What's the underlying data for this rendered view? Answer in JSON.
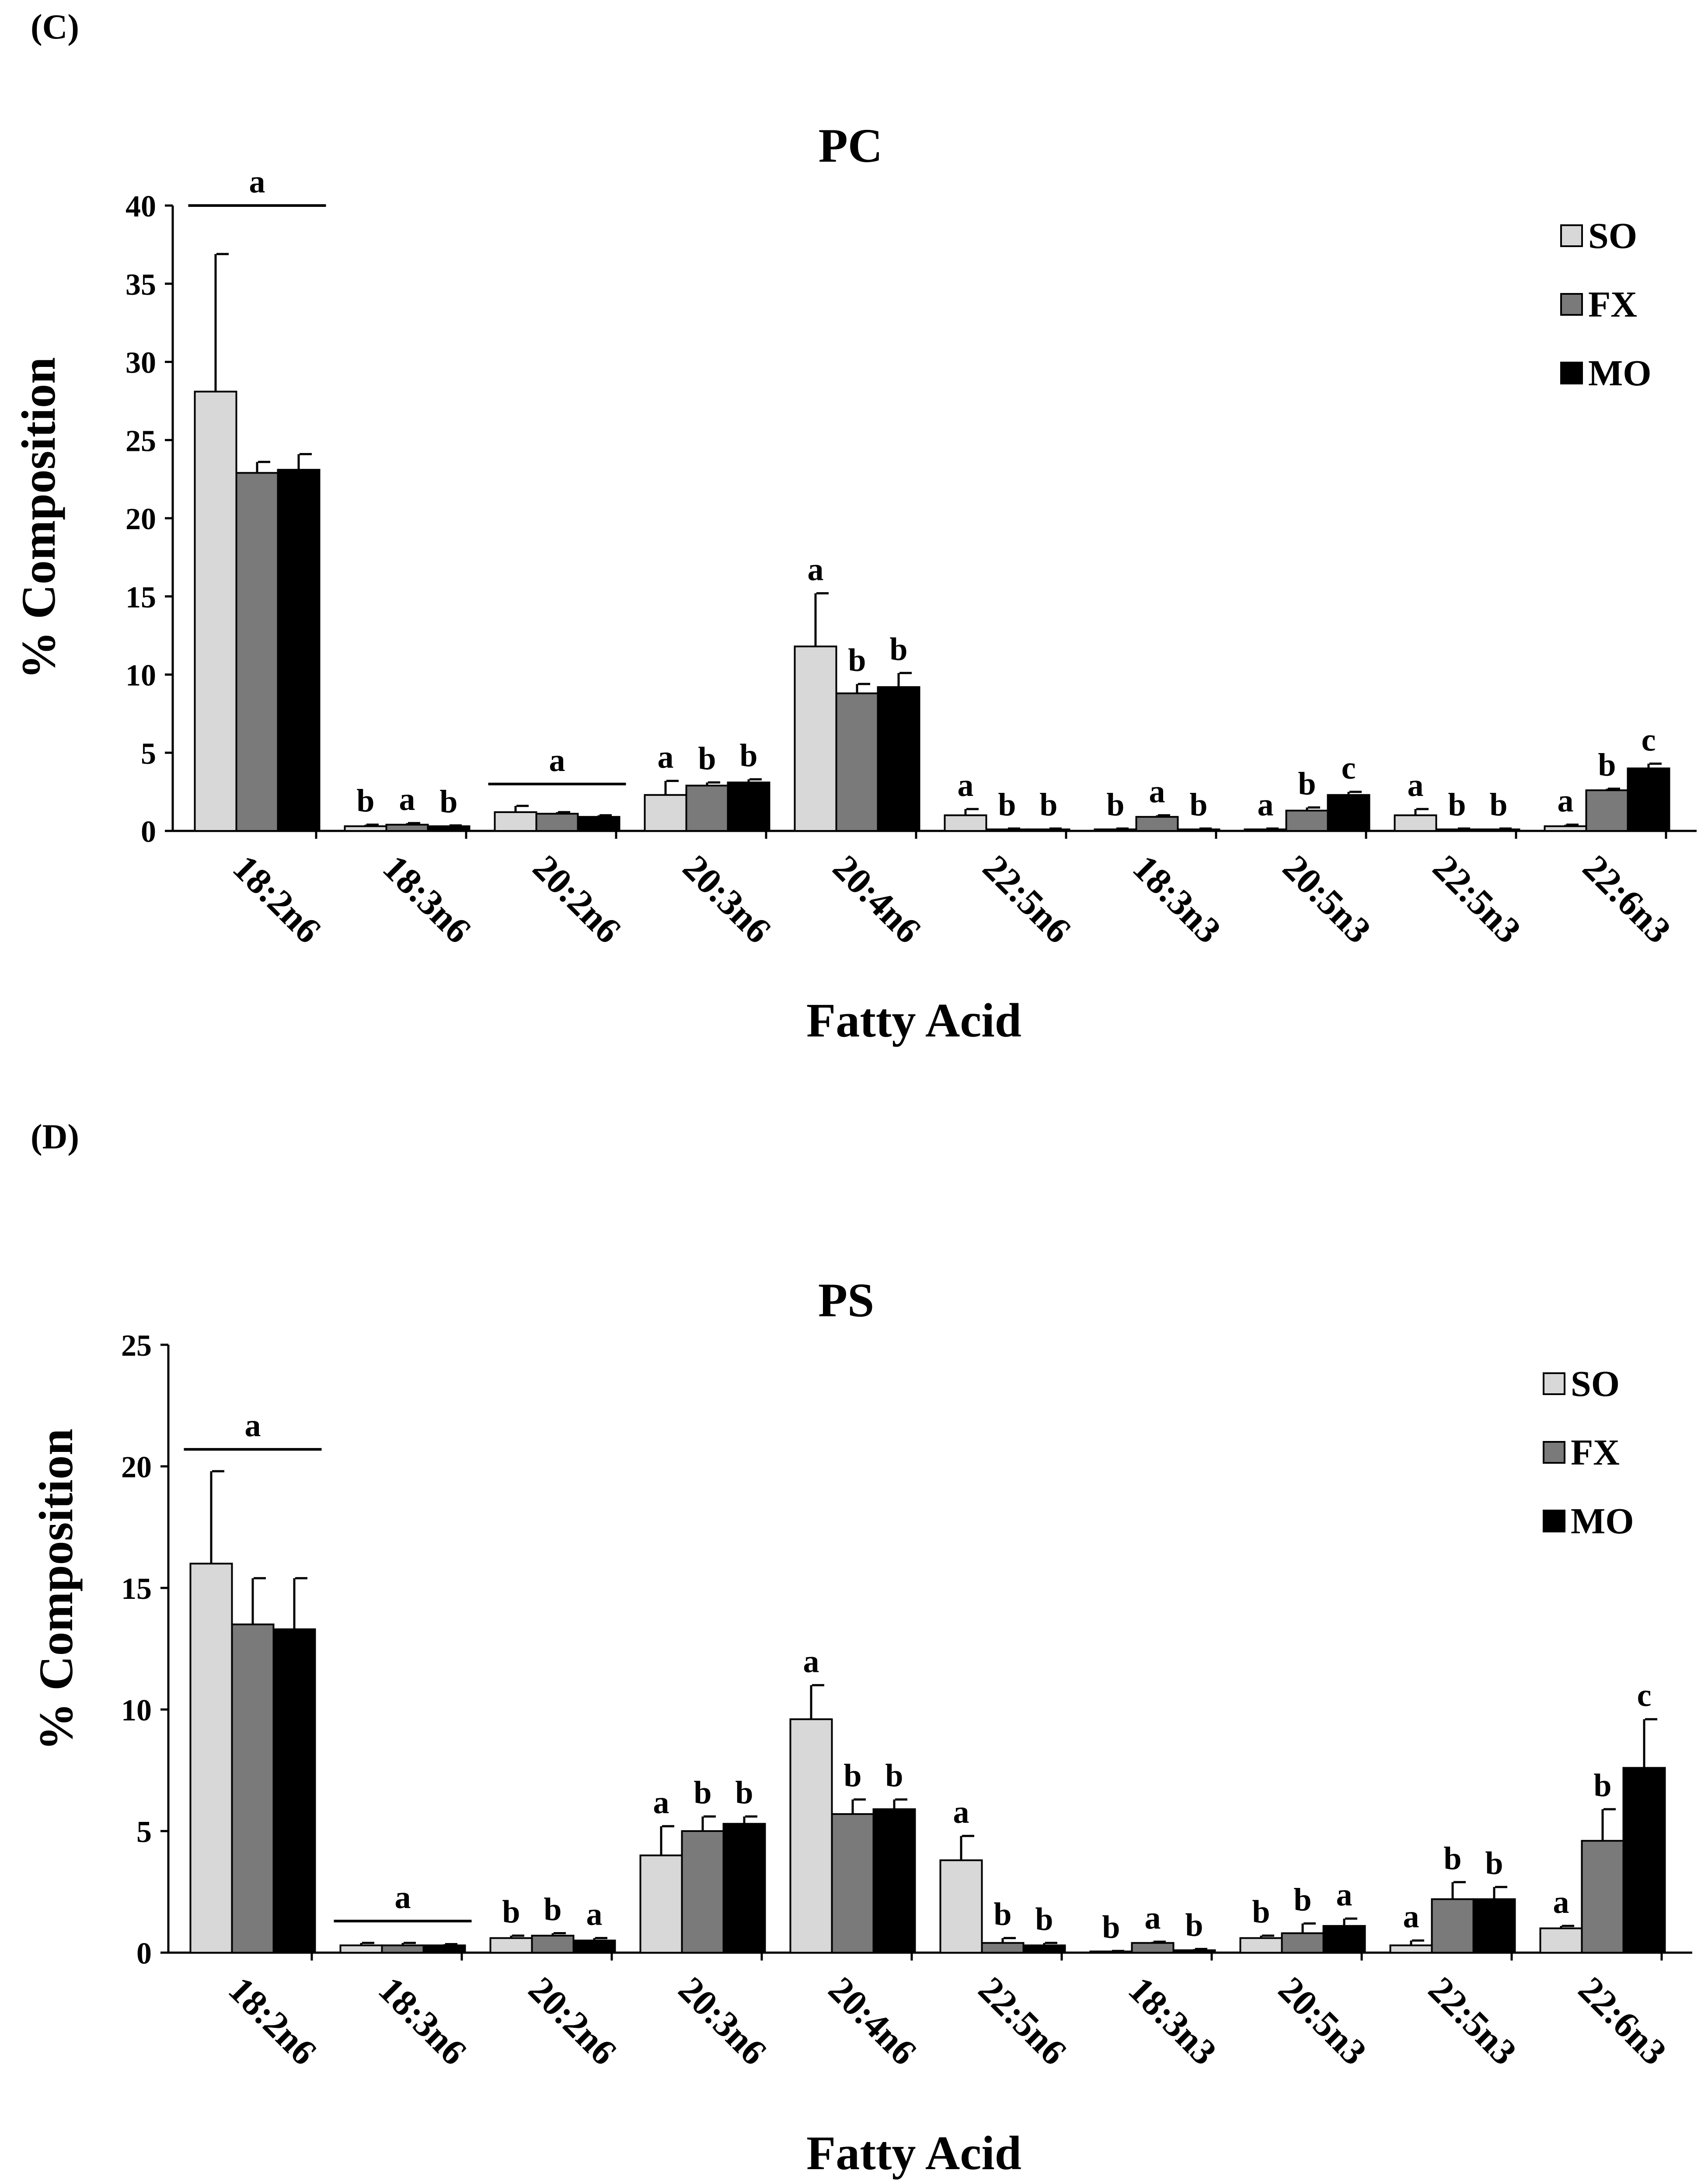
{
  "colors": {
    "SO": "#d8d8d8",
    "FX": "#7a7a7a",
    "MO": "#000000",
    "axis": "#000000"
  },
  "chart_data": [
    {
      "type": "bar",
      "panel_label": "(C)",
      "title": "PC",
      "xlabel": "Fatty Acid",
      "ylabel": "% Composition",
      "ylim": [
        0,
        40
      ],
      "yticks": [
        "0",
        "5",
        "10",
        "15",
        "20",
        "25",
        "30",
        "35",
        "40"
      ],
      "legend": [
        "SO",
        "FX",
        "MO"
      ],
      "legend_position": "top-right",
      "categories": [
        "18:2n6",
        "18:3n6",
        "20:2n6",
        "20:3n6",
        "20:4n6",
        "22:5n6",
        "18:3n3",
        "20:5n3",
        "22:5n3",
        "22:6n3"
      ],
      "series": [
        {
          "name": "SO",
          "values": [
            28.1,
            0.3,
            1.2,
            2.3,
            11.8,
            1.0,
            0.1,
            0.1,
            1.0,
            0.3
          ],
          "errors": [
            8.8,
            0.1,
            0.4,
            0.9,
            3.4,
            0.4,
            0.05,
            0.05,
            0.4,
            0.1
          ]
        },
        {
          "name": "FX",
          "values": [
            22.9,
            0.4,
            1.1,
            2.9,
            8.8,
            0.1,
            0.9,
            1.3,
            0.1,
            2.6
          ],
          "errors": [
            0.7,
            0.1,
            0.1,
            0.2,
            0.6,
            0.05,
            0.1,
            0.2,
            0.05,
            0.1
          ]
        },
        {
          "name": "MO",
          "values": [
            23.1,
            0.3,
            0.9,
            3.1,
            9.2,
            0.1,
            0.1,
            2.3,
            0.1,
            4.0
          ],
          "errors": [
            1.0,
            0.05,
            0.1,
            0.2,
            0.9,
            0.05,
            0.05,
            0.2,
            0.05,
            0.3
          ]
        }
      ],
      "annotations": [
        {
          "category": 0,
          "group": true,
          "text": "a"
        },
        {
          "category": 1,
          "series": 0,
          "text": "b"
        },
        {
          "category": 1,
          "series": 1,
          "text": "a"
        },
        {
          "category": 1,
          "series": 2,
          "text": "b"
        },
        {
          "category": 2,
          "group": true,
          "text": "a"
        },
        {
          "category": 3,
          "series": 0,
          "text": "a"
        },
        {
          "category": 3,
          "series": 1,
          "text": "b"
        },
        {
          "category": 3,
          "series": 2,
          "text": "b"
        },
        {
          "category": 4,
          "series": 0,
          "text": "a"
        },
        {
          "category": 4,
          "series": 1,
          "text": "b"
        },
        {
          "category": 4,
          "series": 2,
          "text": "b"
        },
        {
          "category": 5,
          "series": 0,
          "text": "a"
        },
        {
          "category": 5,
          "series": 1,
          "text": "b"
        },
        {
          "category": 5,
          "series": 2,
          "text": "b"
        },
        {
          "category": 6,
          "series": 0,
          "text": "b"
        },
        {
          "category": 6,
          "series": 1,
          "text": "a"
        },
        {
          "category": 6,
          "series": 2,
          "text": "b"
        },
        {
          "category": 7,
          "series": 0,
          "text": "a"
        },
        {
          "category": 7,
          "series": 1,
          "text": "b"
        },
        {
          "category": 7,
          "series": 2,
          "text": "c"
        },
        {
          "category": 8,
          "series": 0,
          "text": "a"
        },
        {
          "category": 8,
          "series": 1,
          "text": "b"
        },
        {
          "category": 8,
          "series": 2,
          "text": "b"
        },
        {
          "category": 9,
          "series": 0,
          "text": "a"
        },
        {
          "category": 9,
          "series": 1,
          "text": "b"
        },
        {
          "category": 9,
          "series": 2,
          "text": "c"
        }
      ]
    },
    {
      "type": "bar",
      "panel_label": "(D)",
      "title": "PS",
      "xlabel": "Fatty Acid",
      "ylabel": "% Composition",
      "ylim": [
        0,
        25
      ],
      "yticks": [
        "0",
        "5",
        "10",
        "15",
        "20",
        "25"
      ],
      "legend": [
        "SO",
        "FX",
        "MO"
      ],
      "legend_position": "top-right",
      "categories": [
        "18:2n6",
        "18:3n6",
        "20:2n6",
        "20:3n6",
        "20:4n6",
        "22:5n6",
        "18:3n3",
        "20:5n3",
        "22:5n3",
        "22:6n3"
      ],
      "series": [
        {
          "name": "SO",
          "values": [
            16.0,
            0.3,
            0.6,
            4.0,
            9.6,
            3.8,
            0.05,
            0.6,
            0.3,
            1.0
          ],
          "errors": [
            3.8,
            0.1,
            0.1,
            1.2,
            1.4,
            1.0,
            0.02,
            0.1,
            0.2,
            0.1
          ]
        },
        {
          "name": "FX",
          "values": [
            13.5,
            0.3,
            0.7,
            5.0,
            5.7,
            0.4,
            0.4,
            0.8,
            2.2,
            4.6
          ],
          "errors": [
            1.9,
            0.1,
            0.1,
            0.6,
            0.6,
            0.2,
            0.05,
            0.4,
            0.7,
            1.3
          ]
        },
        {
          "name": "MO",
          "values": [
            13.3,
            0.3,
            0.5,
            5.3,
            5.9,
            0.3,
            0.1,
            1.1,
            2.2,
            7.6
          ],
          "errors": [
            2.1,
            0.05,
            0.1,
            0.3,
            0.4,
            0.1,
            0.05,
            0.3,
            0.5,
            2.0
          ]
        }
      ],
      "annotations": [
        {
          "category": 0,
          "group": true,
          "text": "a"
        },
        {
          "category": 1,
          "group": true,
          "text": "a"
        },
        {
          "category": 2,
          "series": 0,
          "text": "b"
        },
        {
          "category": 2,
          "series": 1,
          "text": "b"
        },
        {
          "category": 2,
          "series": 2,
          "text": "a"
        },
        {
          "category": 3,
          "series": 0,
          "text": "a"
        },
        {
          "category": 3,
          "series": 1,
          "text": "b"
        },
        {
          "category": 3,
          "series": 2,
          "text": "b"
        },
        {
          "category": 4,
          "series": 0,
          "text": "a"
        },
        {
          "category": 4,
          "series": 1,
          "text": "b"
        },
        {
          "category": 4,
          "series": 2,
          "text": "b"
        },
        {
          "category": 5,
          "series": 0,
          "text": "a"
        },
        {
          "category": 5,
          "series": 1,
          "text": "b"
        },
        {
          "category": 5,
          "series": 2,
          "text": "b"
        },
        {
          "category": 6,
          "series": 0,
          "text": "b"
        },
        {
          "category": 6,
          "series": 1,
          "text": "a"
        },
        {
          "category": 6,
          "series": 2,
          "text": "b"
        },
        {
          "category": 7,
          "series": 0,
          "text": "b"
        },
        {
          "category": 7,
          "series": 1,
          "text": "b"
        },
        {
          "category": 7,
          "series": 2,
          "text": "a"
        },
        {
          "category": 8,
          "series": 0,
          "text": "a"
        },
        {
          "category": 8,
          "series": 1,
          "text": "b"
        },
        {
          "category": 8,
          "series": 2,
          "text": "b"
        },
        {
          "category": 9,
          "series": 0,
          "text": "a"
        },
        {
          "category": 9,
          "series": 1,
          "text": "b"
        },
        {
          "category": 9,
          "series": 2,
          "text": "c"
        }
      ]
    }
  ]
}
